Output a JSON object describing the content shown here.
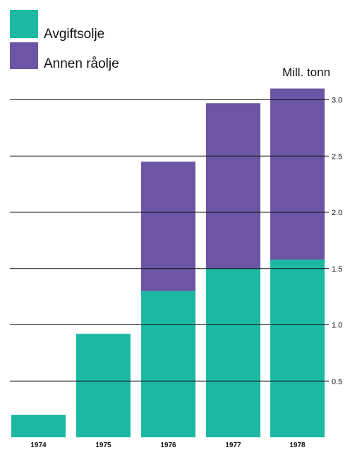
{
  "chart_data": {
    "type": "bar",
    "stacked": true,
    "categories": [
      "1974",
      "1975",
      "1976",
      "1977",
      "1978"
    ],
    "series": [
      {
        "name": "Avgiftsolje",
        "values": [
          0.2,
          0.92,
          1.3,
          1.5,
          1.58
        ],
        "color": "#1bb9a4"
      },
      {
        "name": "Annen råolje",
        "values": [
          0,
          0,
          1.15,
          1.47,
          1.52
        ],
        "color": "#6b55a4"
      }
    ],
    "ylabel": "Mill. tonn",
    "yticks": [
      "0.5",
      "1.0",
      "1.5",
      "2.0",
      "2.5",
      "3.0"
    ],
    "ylim": [
      0,
      3.2
    ],
    "grid": true,
    "legend_position": "top-left",
    "axis_side": "right"
  }
}
